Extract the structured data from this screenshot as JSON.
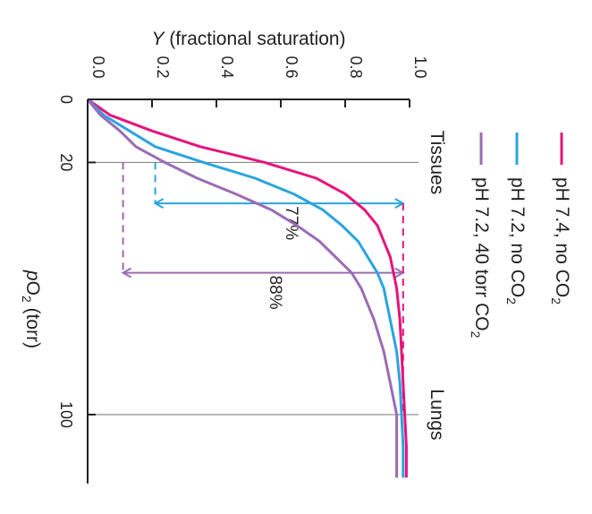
{
  "chart_data": {
    "type": "line",
    "orientation": "rotated 90 degrees clockwise (pO2 runs top-to-bottom, Y runs left-to-right)",
    "ylabel_prefix": "Y",
    "ylabel_rest": " (fractional saturation)",
    "xlabel_prefix": "p",
    "xlabel_o": "O",
    "xlabel_sub": "2",
    "xlabel_rest": " (torr)",
    "y_ticks": [
      "0.0",
      "0.2",
      "0.4",
      "0.6",
      "0.8",
      "1.0"
    ],
    "y_tick_values": [
      0,
      0.2,
      0.4,
      0.6,
      0.8,
      1.0
    ],
    "x_ticks": [
      "0",
      "20",
      "100"
    ],
    "x_tick_values": [
      0,
      20,
      100
    ],
    "xlim": [
      0,
      120
    ],
    "ylim": [
      0,
      1.0
    ],
    "reference_lines": [
      {
        "label": "Tissues",
        "x": 20
      },
      {
        "label": "Lungs",
        "x": 100
      }
    ],
    "series": [
      {
        "name": "pH 7.4, no CO",
        "name_sub": "2",
        "color": "#e6137b",
        "x": [
          0,
          5,
          10,
          15,
          20,
          25,
          30,
          35,
          40,
          45,
          50,
          55,
          60,
          70,
          80,
          90,
          100,
          110,
          120
        ],
        "y": [
          0,
          0.07,
          0.2,
          0.35,
          0.55,
          0.71,
          0.8,
          0.86,
          0.9,
          0.92,
          0.94,
          0.95,
          0.96,
          0.97,
          0.975,
          0.98,
          0.985,
          0.99,
          0.99
        ]
      },
      {
        "name": "pH 7.2, no CO",
        "name_sub": "2",
        "color": "#2aa4e0",
        "x": [
          0,
          5,
          10,
          15,
          20,
          25,
          30,
          35,
          40,
          45,
          50,
          55,
          60,
          70,
          80,
          90,
          100,
          110,
          120
        ],
        "y": [
          0,
          0.05,
          0.13,
          0.21,
          0.36,
          0.52,
          0.64,
          0.73,
          0.79,
          0.84,
          0.87,
          0.9,
          0.92,
          0.94,
          0.96,
          0.97,
          0.975,
          0.98,
          0.98
        ]
      },
      {
        "name": "pH 7.2, 40 torr CO",
        "name_sub": "2",
        "color": "#9b6cb5",
        "x": [
          0,
          5,
          10,
          15,
          20,
          25,
          30,
          35,
          40,
          45,
          50,
          55,
          60,
          70,
          80,
          90,
          100,
          110,
          120
        ],
        "y": [
          0,
          0.04,
          0.1,
          0.15,
          0.24,
          0.34,
          0.46,
          0.57,
          0.65,
          0.72,
          0.77,
          0.82,
          0.85,
          0.89,
          0.92,
          0.94,
          0.96,
          0.96,
          0.96
        ]
      }
    ],
    "annotations": [
      {
        "label": "77%",
        "color": "#2aa4e0",
        "x": 33,
        "from_y": 0.21,
        "to_y": 0.98,
        "drop_from_x": 20
      },
      {
        "label": "88%",
        "color": "#9b6cb5",
        "x": 55,
        "from_y": 0.11,
        "to_y": 0.98,
        "drop_from_x": 20
      }
    ],
    "magenta_drop": {
      "color": "#e6137b",
      "y": 0.98,
      "from_x": 33,
      "to_x": 100
    },
    "grid": false,
    "legend_position": "top-right, rotated"
  }
}
